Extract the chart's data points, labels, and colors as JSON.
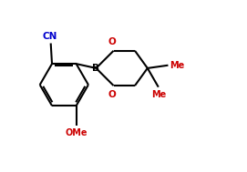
{
  "background_color": "#ffffff",
  "bond_color": "#000000",
  "label_color_black": "#000000",
  "label_color_blue": "#0000cd",
  "label_color_red": "#cc0000",
  "line_width": 1.5,
  "figsize": [
    2.71,
    1.89
  ],
  "dpi": 100,
  "xlim": [
    0,
    10
  ],
  "ylim": [
    0,
    7
  ]
}
